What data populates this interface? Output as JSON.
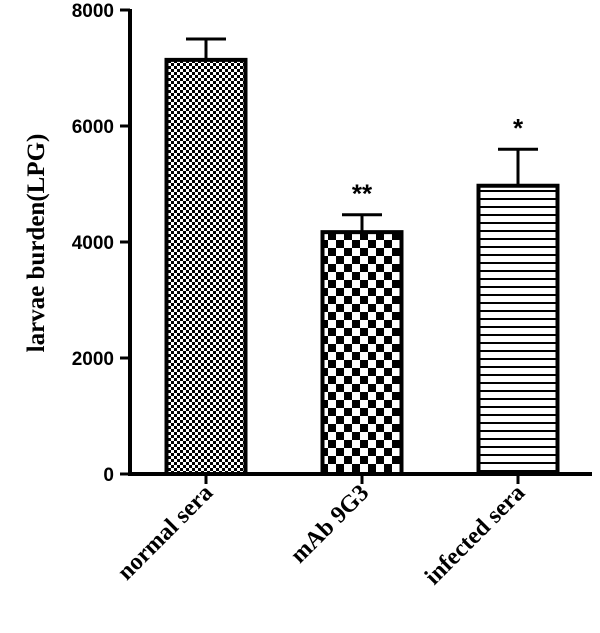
{
  "chart_data": {
    "type": "bar",
    "title": "",
    "xlabel": "",
    "ylabel": "larvae burden(LPG)",
    "ylim": [
      0,
      8000
    ],
    "yticks": [
      "0",
      "2000",
      "4000",
      "6000",
      "8000"
    ],
    "categories": [
      "normal sera",
      "mAb 9G3",
      "infected sera"
    ],
    "values": [
      7140,
      4170,
      4970
    ],
    "error_upper": [
      7500,
      4470,
      5600
    ],
    "annotations": [
      "",
      "**",
      "*"
    ],
    "fill_patterns": [
      "fine-checker",
      "coarse-checker",
      "horizontal-lines"
    ],
    "grid": false,
    "colors": {
      "stroke": "#000000",
      "background": "#ffffff"
    }
  }
}
